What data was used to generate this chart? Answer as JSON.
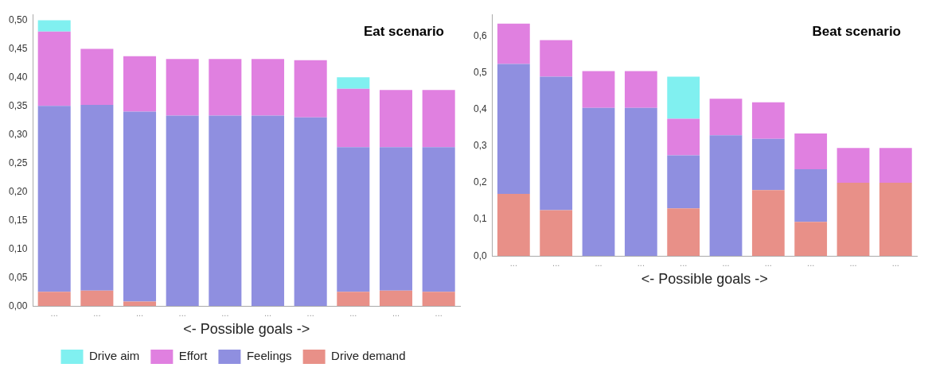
{
  "chart_data": [
    {
      "type": "bar",
      "title": "Eat scenario",
      "xlabel": "<- Possible goals ->",
      "categories": [
        "...",
        "...",
        "...",
        "...",
        "...",
        "...",
        "...",
        "...",
        "...",
        "..."
      ],
      "stacked": true,
      "legend": "bottom",
      "grid": false,
      "ylim": [
        0,
        0.51
      ],
      "yticks": [
        {
          "value": 0,
          "label": "0,00"
        },
        {
          "value": 0.05,
          "label": "0,05"
        },
        {
          "value": 0.1,
          "label": "0,10"
        },
        {
          "value": 0.15,
          "label": "0,15"
        },
        {
          "value": 0.2,
          "label": "0,20"
        },
        {
          "value": 0.25,
          "label": "0,25"
        },
        {
          "value": 0.3,
          "label": "0,30"
        },
        {
          "value": 0.35,
          "label": "0,35"
        },
        {
          "value": 0.4,
          "label": "0,40"
        },
        {
          "value": 0.45,
          "label": "0,45"
        },
        {
          "value": 0.5,
          "label": "0,50"
        }
      ],
      "series": [
        {
          "name": "Drive demand",
          "color": "#e89088",
          "values": [
            0.025,
            0.027,
            0.008,
            0,
            0,
            0,
            0,
            0.025,
            0.027,
            0.025
          ]
        },
        {
          "name": "Feelings",
          "color": "#8f8fe0",
          "values": [
            0.325,
            0.325,
            0.332,
            0.333,
            0.333,
            0.333,
            0.33,
            0.253,
            0.251,
            0.253
          ]
        },
        {
          "name": "Effort",
          "color": "#e080e0",
          "values": [
            0.13,
            0.098,
            0.097,
            0.099,
            0.099,
            0.099,
            0.1,
            0.102,
            0.1,
            0.1
          ]
        },
        {
          "name": "Drive aim",
          "color": "#80f0f0",
          "values": [
            0.02,
            0,
            0,
            0,
            0,
            0,
            0,
            0.02,
            0,
            0
          ]
        }
      ]
    },
    {
      "type": "bar",
      "title": "Beat scenario",
      "xlabel": "<- Possible goals ->",
      "categories": [
        "...",
        "...",
        "...",
        "...",
        "...",
        "...",
        "...",
        "...",
        "...",
        "..."
      ],
      "stacked": true,
      "grid": false,
      "ylim": [
        0,
        0.66
      ],
      "yticks": [
        {
          "value": 0,
          "label": "0,0"
        },
        {
          "value": 0.1,
          "label": "0,1"
        },
        {
          "value": 0.2,
          "label": "0,2"
        },
        {
          "value": 0.3,
          "label": "0,3"
        },
        {
          "value": 0.4,
          "label": "0,4"
        },
        {
          "value": 0.5,
          "label": "0,5"
        },
        {
          "value": 0.6,
          "label": "0,6"
        }
      ],
      "series": [
        {
          "color": "#e89088",
          "values": [
            0.17,
            0.125,
            0,
            0,
            0.13,
            0,
            0.18,
            0.093,
            0.2,
            0.2
          ]
        },
        {
          "color": "#8f8fe0",
          "values": [
            0.355,
            0.365,
            0.405,
            0.405,
            0.145,
            0.33,
            0.14,
            0.144,
            0,
            0
          ]
        },
        {
          "color": "#e080e0",
          "values": [
            0.11,
            0.1,
            0.1,
            0.1,
            0.1,
            0.1,
            0.1,
            0.098,
            0.095,
            0.095
          ]
        },
        {
          "color": "#80f0f0",
          "values": [
            0,
            0,
            0,
            0,
            0.115,
            0,
            0,
            0,
            0,
            0
          ]
        }
      ]
    }
  ]
}
